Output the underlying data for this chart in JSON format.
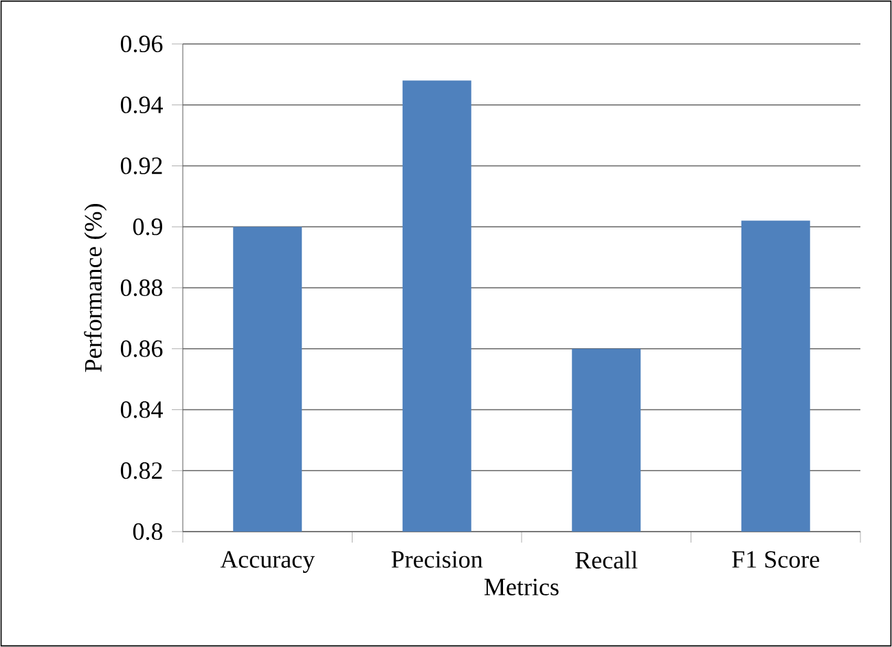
{
  "chart_data": {
    "type": "bar",
    "xlabel": "Metrics",
    "ylabel": "Performance (%)",
    "categories": [
      "Accuracy",
      "Precision",
      "Recall",
      "F1 Score"
    ],
    "values": [
      0.9,
      0.948,
      0.86,
      0.902
    ],
    "color": "#4f81bd",
    "ylim": [
      0.8,
      0.96
    ],
    "yticks": [
      0.8,
      0.82,
      0.84,
      0.86,
      0.88,
      0.9,
      0.92,
      0.94,
      0.96
    ],
    "grid": "y"
  }
}
